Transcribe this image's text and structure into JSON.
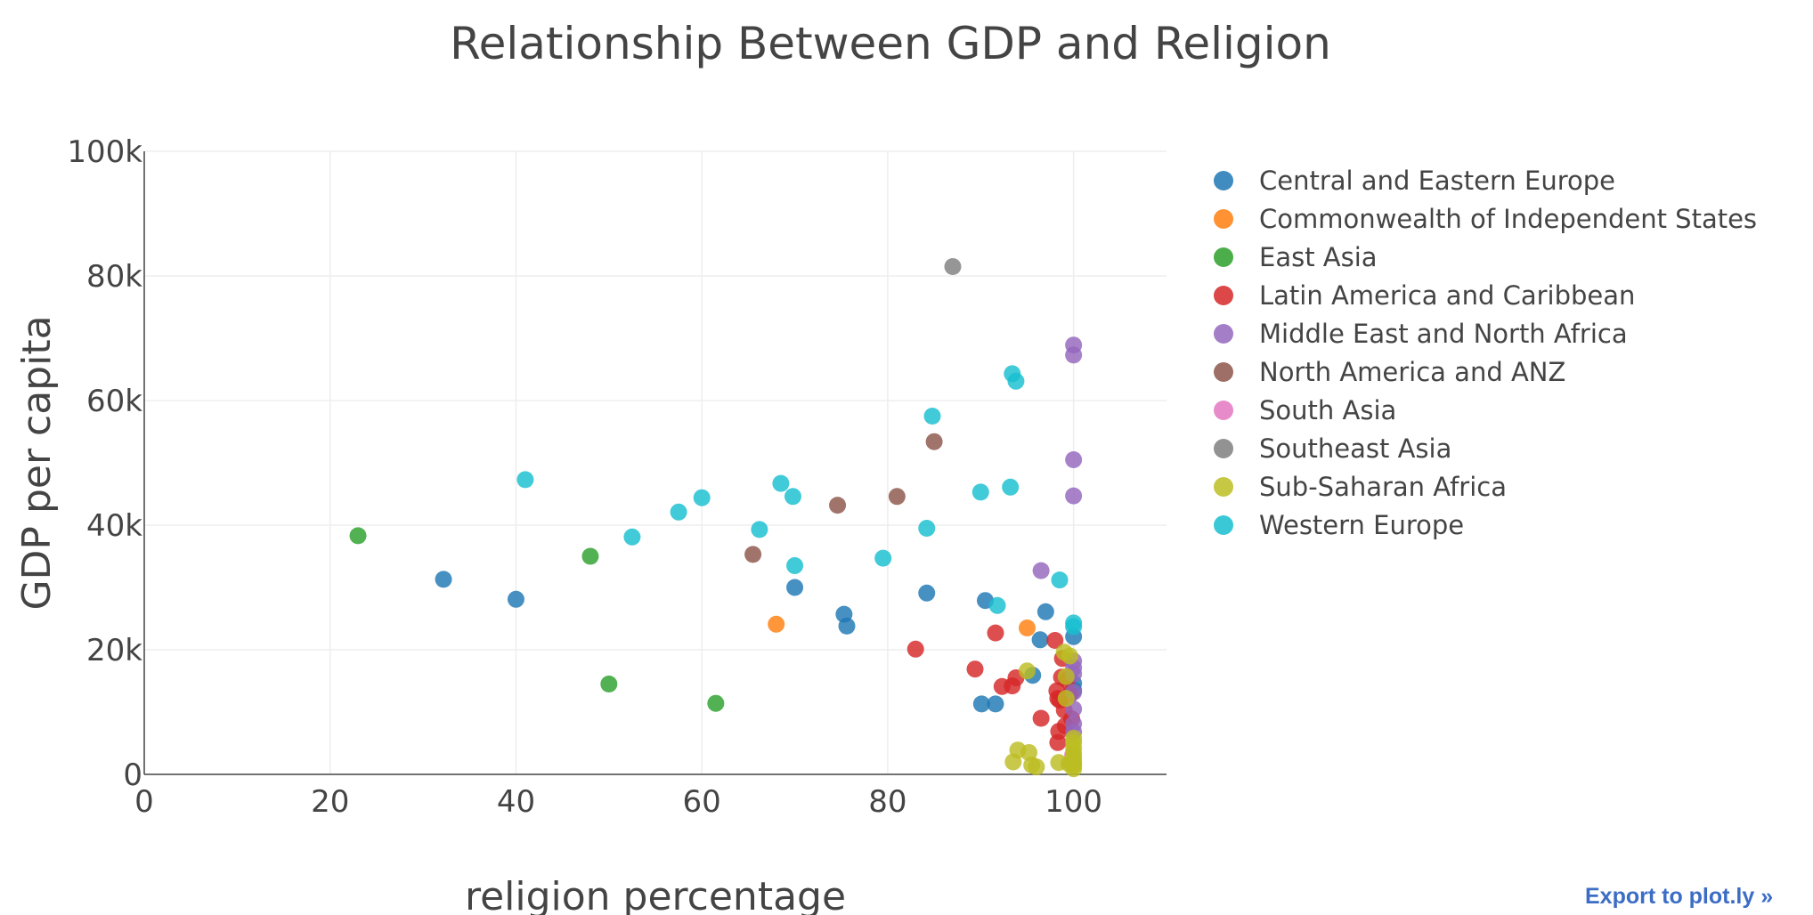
{
  "chart_data": {
    "type": "scatter",
    "title": "Relationship Between GDP and Religion",
    "xlabel": "religion percentage",
    "ylabel": "GDP per capita",
    "xlim": [
      0,
      110
    ],
    "ylim": [
      0,
      100000
    ],
    "x_ticks": [
      "0",
      "20",
      "40",
      "60",
      "80",
      "100"
    ],
    "y_ticks": [
      "0",
      "20k",
      "40k",
      "60k",
      "80k",
      "100k"
    ],
    "grid": true,
    "legend_position": "right",
    "series": [
      {
        "name": "Central and Eastern Europe",
        "color": "#1f77b4",
        "points": [
          [
            32.2,
            31300
          ],
          [
            40,
            28100
          ],
          [
            70,
            30000
          ],
          [
            75.3,
            25700
          ],
          [
            75.6,
            23800
          ],
          [
            84.2,
            29100
          ],
          [
            90.5,
            27900
          ],
          [
            90.1,
            11300
          ],
          [
            91.6,
            11300
          ],
          [
            95.6,
            15900
          ],
          [
            96.4,
            21600
          ],
          [
            97.0,
            26100
          ],
          [
            100,
            22100
          ],
          [
            100,
            14600
          ],
          [
            100,
            13500
          ]
        ]
      },
      {
        "name": "Commonwealth of Independent States",
        "color": "#ff7f0e",
        "points": [
          [
            68,
            24100
          ],
          [
            95,
            23500
          ]
        ]
      },
      {
        "name": "East Asia",
        "color": "#2ca02c",
        "points": [
          [
            23,
            38300
          ],
          [
            48,
            35000
          ],
          [
            50,
            14500
          ],
          [
            61.5,
            11400
          ]
        ]
      },
      {
        "name": "Latin America and Caribbean",
        "color": "#d62728",
        "points": [
          [
            83,
            20100
          ],
          [
            89.4,
            16900
          ],
          [
            91.6,
            22700
          ],
          [
            92.3,
            14100
          ],
          [
            93.4,
            14200
          ],
          [
            93.8,
            15500
          ],
          [
            96.5,
            9000
          ],
          [
            98,
            21500
          ],
          [
            98.2,
            13400
          ],
          [
            98.3,
            12200
          ],
          [
            98.4,
            6900
          ],
          [
            98.3,
            5100
          ],
          [
            98.5,
            11900
          ],
          [
            98.7,
            15600
          ],
          [
            98.8,
            18600
          ],
          [
            99,
            10300
          ],
          [
            99.3,
            15100
          ],
          [
            99.1,
            7800
          ],
          [
            99.6,
            12800
          ],
          [
            99.8,
            8900
          ]
        ]
      },
      {
        "name": "Middle East and North Africa",
        "color": "#9467bd",
        "points": [
          [
            96.5,
            32700
          ],
          [
            100,
            68900
          ],
          [
            100,
            67300
          ],
          [
            100,
            50500
          ],
          [
            100,
            44700
          ],
          [
            100,
            18200
          ],
          [
            100,
            16100
          ],
          [
            100,
            13200
          ],
          [
            100,
            10500
          ],
          [
            100,
            8100
          ],
          [
            100,
            6800
          ],
          [
            100,
            17100
          ]
        ]
      },
      {
        "name": "North America and ANZ",
        "color": "#8c564b",
        "points": [
          [
            65.5,
            35300
          ],
          [
            74.6,
            43200
          ],
          [
            81,
            44600
          ],
          [
            85,
            53400
          ]
        ]
      },
      {
        "name": "South Asia",
        "color": "#e377c2",
        "points": [
          [
            99.7,
            1800
          ],
          [
            99.9,
            3100
          ]
        ]
      },
      {
        "name": "Southeast Asia",
        "color": "#7f7f7f",
        "points": [
          [
            87,
            81500
          ]
        ]
      },
      {
        "name": "Sub-Saharan Africa",
        "color": "#bcbd22",
        "points": [
          [
            93.5,
            2000
          ],
          [
            94,
            3900
          ],
          [
            95,
            16600
          ],
          [
            95.2,
            3500
          ],
          [
            95.5,
            1500
          ],
          [
            96,
            1200
          ],
          [
            98.4,
            1900
          ],
          [
            99,
            19600
          ],
          [
            99.2,
            15700
          ],
          [
            99.2,
            12200
          ],
          [
            99.5,
            1700
          ],
          [
            99.6,
            19000
          ],
          [
            100,
            5800
          ],
          [
            100,
            5100
          ],
          [
            100,
            4200
          ],
          [
            100,
            3400
          ],
          [
            100,
            2700
          ],
          [
            100,
            2100
          ],
          [
            100,
            1700
          ],
          [
            100,
            1400
          ],
          [
            100,
            900
          ]
        ]
      },
      {
        "name": "Western Europe",
        "color": "#17becf",
        "points": [
          [
            41,
            47300
          ],
          [
            52.5,
            38100
          ],
          [
            57.5,
            42100
          ],
          [
            60,
            44400
          ],
          [
            66.2,
            39300
          ],
          [
            68.5,
            46700
          ],
          [
            69.8,
            44600
          ],
          [
            70,
            33500
          ],
          [
            79.5,
            34700
          ],
          [
            84.2,
            39500
          ],
          [
            84.8,
            57500
          ],
          [
            90,
            45300
          ],
          [
            91.8,
            27100
          ],
          [
            93.2,
            46100
          ],
          [
            93.4,
            64300
          ],
          [
            93.8,
            63100
          ],
          [
            98.5,
            31200
          ],
          [
            100,
            24300
          ],
          [
            100,
            23700
          ]
        ]
      }
    ]
  },
  "export_link_label": "Export to plot.ly »"
}
